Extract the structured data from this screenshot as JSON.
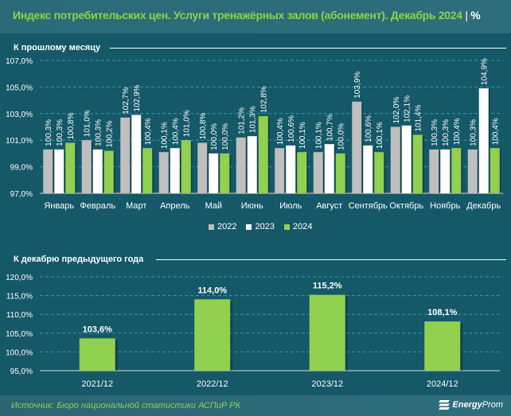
{
  "header": {
    "title": "Индекс потребительских цен. Услуги тренажёрных залов (абонемент). Декабрь 2024",
    "separator": "|",
    "unit": "%"
  },
  "colors": {
    "background": "#155868",
    "accent_green": "#8fd14f",
    "series_2022": "#bfbfbf",
    "series_2023": "#ffffff",
    "series_2024": "#92d050",
    "gridline": "#2f9bb0"
  },
  "chart_data": [
    {
      "type": "bar",
      "title": "К прошлому месяцу",
      "xlabel": "",
      "ylabel": "",
      "ylim": [
        97.0,
        107.0
      ],
      "yticks": [
        "97,0%",
        "99,0%",
        "101,0%",
        "103,0%",
        "105,0%",
        "107,0%"
      ],
      "ytick_values": [
        97,
        99,
        101,
        103,
        105,
        107
      ],
      "grid": true,
      "legend_position": "bottom",
      "categories": [
        "Январь",
        "Февраль",
        "Март",
        "Апрель",
        "Май",
        "Июнь",
        "Июль",
        "Август",
        "Сентябрь",
        "Октябрь",
        "Ноябрь",
        "Декабрь"
      ],
      "series": [
        {
          "name": "2022",
          "values": [
            100.3,
            101.0,
            102.7,
            100.1,
            100.8,
            101.2,
            100.4,
            100.1,
            103.9,
            102.0,
            100.3,
            100.3
          ],
          "labels": [
            "100,3%",
            "101,0%",
            "102,7%",
            "100,1%",
            "100,8%",
            "101,2%",
            "100,4%",
            "100,1%",
            "103,9%",
            "102,0%",
            "100,3%",
            "100,3%"
          ]
        },
        {
          "name": "2023",
          "values": [
            100.3,
            100.3,
            102.9,
            100.4,
            100.0,
            101.3,
            100.6,
            100.7,
            100.6,
            102.1,
            100.3,
            104.9
          ],
          "labels": [
            "100,3%",
            "100,3%",
            "102,9%",
            "100,4%",
            "100,0%",
            "101,3%",
            "100,6%",
            "100,7%",
            "100,6%",
            "102,1%",
            "100,3%",
            "104,9%"
          ]
        },
        {
          "name": "2024",
          "values": [
            100.8,
            100.2,
            100.4,
            101.0,
            100.0,
            102.8,
            100.1,
            100.0,
            100.1,
            101.4,
            100.4,
            100.4
          ],
          "labels": [
            "100,8%",
            "100,2%",
            "100,4%",
            "101,0%",
            "100,0%",
            "102,8%",
            "100,1%",
            "100,0%",
            "100,1%",
            "101,4%",
            "100,4%",
            "100,4%"
          ]
        }
      ]
    },
    {
      "type": "bar",
      "title": "К декабрю предыдущего года",
      "xlabel": "",
      "ylabel": "",
      "ylim": [
        95.0,
        120.0
      ],
      "yticks": [
        "95,0%",
        "100,0%",
        "105,0%",
        "110,0%",
        "115,0%",
        "120,0%"
      ],
      "ytick_values": [
        95,
        100,
        105,
        110,
        115,
        120
      ],
      "grid": true,
      "categories": [
        "2021/12",
        "2022/12",
        "2023/12",
        "2024/12"
      ],
      "values": [
        103.6,
        114.0,
        115.2,
        108.1
      ],
      "labels": [
        "103,6%",
        "114,0%",
        "115,2%",
        "108,1%"
      ]
    }
  ],
  "footer": {
    "source": "Источник: Бюро национальной статистики АСПиР РК",
    "logo_bold": "Energy",
    "logo_light": "Prom"
  }
}
